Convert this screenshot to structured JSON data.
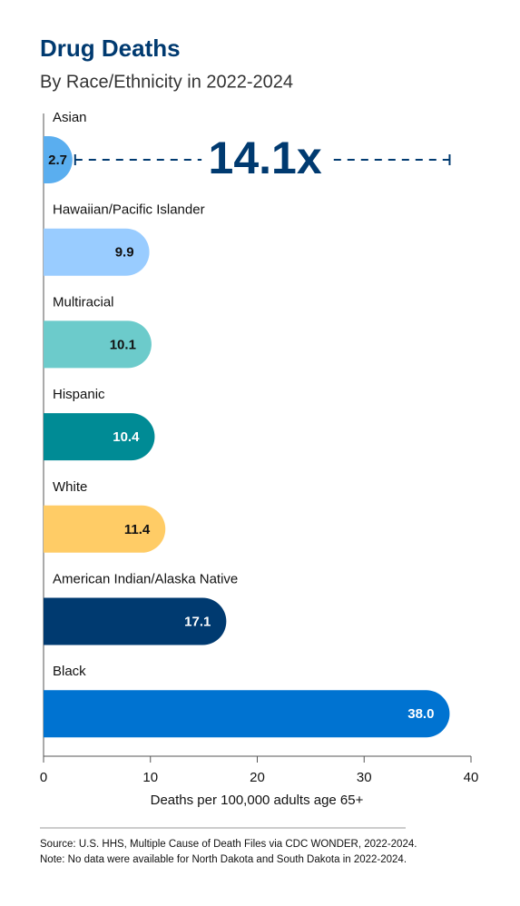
{
  "chart_data": {
    "type": "hbar",
    "title": "Drug Deaths",
    "subtitle": "By Race/Ethnicity in 2022-2024",
    "categories": [
      "Asian",
      "Hawaiian/Pacific Islander",
      "Multiracial",
      "Hispanic",
      "White",
      "American Indian/Alaska Native",
      "Black"
    ],
    "values": [
      2.7,
      9.9,
      10.1,
      10.4,
      11.4,
      17.1,
      38.0
    ],
    "value_labels": [
      "2.7",
      "9.9",
      "10.1",
      "10.4",
      "11.4",
      "17.1",
      "38.0"
    ],
    "colors": [
      "#5aaeef",
      "#99ccff",
      "#6ccbcb",
      "#008b95",
      "#ffcc66",
      "#003a70",
      "#0073d1"
    ],
    "annotation": "14.1x",
    "xlabel": "Deaths per 100,000 adults age 65+",
    "xlim": [
      0,
      40
    ],
    "xticks": [
      0,
      10,
      20,
      30,
      40
    ],
    "grid": false,
    "notes": [
      "Source: U.S. HHS, Multiple Cause of Death Files via CDC WONDER, 2022-2024.",
      "Note: No data were available for North Dakota and South Dakota in 2022-2024."
    ]
  }
}
